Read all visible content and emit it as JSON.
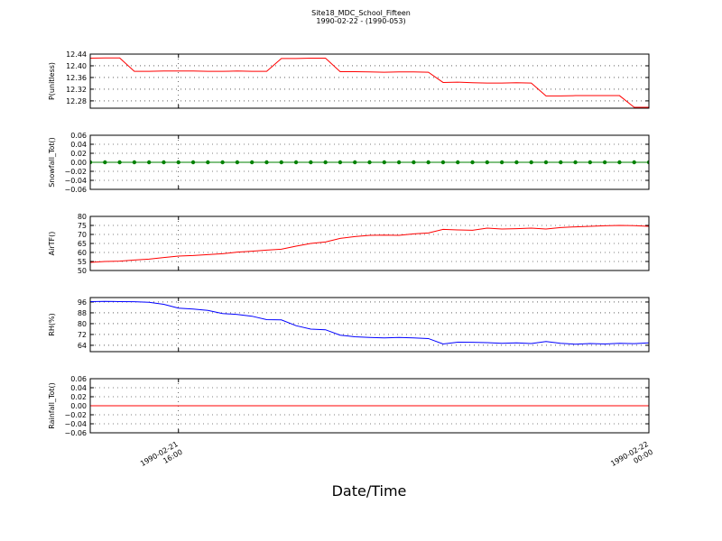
{
  "title": "Site18_MDC_School_Fifteen",
  "subtitle": "1990-02-22 - (1990-053)",
  "xlabel": "Date/Time",
  "x": [
    "1990-02-21 14:30",
    "1990-02-21 14:45",
    "1990-02-21 15:00",
    "1990-02-21 15:15",
    "1990-02-21 15:30",
    "1990-02-21 15:45",
    "1990-02-21 16:00",
    "1990-02-21 16:15",
    "1990-02-21 16:30",
    "1990-02-21 16:45",
    "1990-02-21 17:00",
    "1990-02-21 17:15",
    "1990-02-21 17:30",
    "1990-02-21 17:45",
    "1990-02-21 18:00",
    "1990-02-21 18:15",
    "1990-02-21 18:30",
    "1990-02-21 18:45",
    "1990-02-21 19:00",
    "1990-02-21 19:15",
    "1990-02-21 19:30",
    "1990-02-21 19:45",
    "1990-02-21 20:00",
    "1990-02-21 20:15",
    "1990-02-21 20:30",
    "1990-02-21 20:45",
    "1990-02-21 21:00",
    "1990-02-21 21:15",
    "1990-02-21 21:30",
    "1990-02-21 21:45",
    "1990-02-21 22:00",
    "1990-02-21 22:15",
    "1990-02-21 22:30",
    "1990-02-21 22:45",
    "1990-02-21 23:00",
    "1990-02-21 23:15",
    "1990-02-21 23:30",
    "1990-02-21 23:45",
    "1990-02-22 00:00"
  ],
  "xlim": [
    "1990-02-21 14:30",
    "1990-02-22 00:00"
  ],
  "xticks": [
    {
      "value": "1990-02-21 16:00",
      "label": "1990-02-21\n16:00"
    },
    {
      "value": "1990-02-22 00:00",
      "label": "1990-02-22\n00:00"
    }
  ],
  "chart_data": [
    {
      "type": "line",
      "ylabel": "P(unitless)",
      "ylim": [
        12.255,
        12.44
      ],
      "grid": true,
      "yticks": [
        12.28,
        12.32,
        12.36,
        {
          "value": 12.4,
          "label": "12.40"
        },
        12.44
      ],
      "series": [
        {
          "name": "P",
          "color": "#ff0000",
          "marker": false,
          "values": [
            12.426,
            12.427,
            12.427,
            12.381,
            12.381,
            12.382,
            12.382,
            12.382,
            12.381,
            12.381,
            12.382,
            12.381,
            12.381,
            12.425,
            12.425,
            12.426,
            12.426,
            12.38,
            12.38,
            12.379,
            12.378,
            12.379,
            12.379,
            12.378,
            12.343,
            12.344,
            12.342,
            12.341,
            12.341,
            12.342,
            12.341,
            12.297,
            12.297,
            12.298,
            12.298,
            12.298,
            12.298,
            12.258,
            12.258
          ]
        }
      ]
    },
    {
      "type": "line",
      "ylabel": "Snowfall_Tot()",
      "ylim": [
        -0.06,
        0.06
      ],
      "grid": true,
      "yticks": [
        {
          "value": -0.06,
          "label": "−0.06"
        },
        {
          "value": -0.04,
          "label": "−0.04"
        },
        {
          "value": -0.02,
          "label": "−0.02"
        },
        {
          "value": 0,
          "label": "0.00"
        },
        0.02,
        0.04,
        0.06
      ],
      "series": [
        {
          "name": "Snowfall_Tot",
          "color": "#008000",
          "marker": true,
          "values": [
            0,
            0,
            0,
            0,
            0,
            0,
            0,
            0,
            0,
            0,
            0,
            0,
            0,
            0,
            0,
            0,
            0,
            0,
            0,
            0,
            0,
            0,
            0,
            0,
            0,
            0,
            0,
            0,
            0,
            0,
            0,
            0,
            0,
            0,
            0,
            0,
            0,
            0,
            0
          ]
        }
      ]
    },
    {
      "type": "line",
      "ylabel": "AirTF()",
      "ylim": [
        50,
        80
      ],
      "grid": true,
      "yticks": [
        50,
        55,
        60,
        65,
        70,
        75,
        80
      ],
      "series": [
        {
          "name": "AirTF",
          "color": "#ff0000",
          "marker": false,
          "values": [
            54.5,
            55,
            55.2,
            55.8,
            56.3,
            57.2,
            58,
            58.3,
            58.8,
            59.3,
            60.2,
            60.7,
            61.3,
            61.8,
            63.5,
            65,
            65.8,
            67.8,
            68.8,
            69.5,
            69.6,
            69.5,
            70.3,
            70.8,
            72.8,
            72.5,
            72.3,
            73.5,
            73,
            73.2,
            73.5,
            73,
            73.8,
            74.2,
            74.5,
            74.8,
            75,
            74.9,
            74.5
          ]
        }
      ]
    },
    {
      "type": "line",
      "ylabel": "RH(%)",
      "ylim": [
        59.3,
        99.3
      ],
      "grid": true,
      "yticks": [
        64,
        72,
        80,
        88,
        96
      ],
      "series": [
        {
          "name": "RH",
          "color": "#0000ff",
          "marker": false,
          "values": [
            96.3,
            96.5,
            96.3,
            96.2,
            95.8,
            94.3,
            91.5,
            90.8,
            89.8,
            87.5,
            86.8,
            85.5,
            83,
            82.8,
            78.5,
            76,
            75.5,
            71.5,
            70.3,
            69.8,
            69.5,
            69.8,
            69.5,
            69,
            65,
            66.3,
            66.2,
            66,
            65.5,
            65.8,
            65.3,
            66.8,
            65.5,
            64.8,
            65.3,
            65,
            65.5,
            65.2,
            65.8
          ]
        }
      ]
    },
    {
      "type": "line",
      "ylabel": "Rainfall_Tot()",
      "ylim": [
        -0.06,
        0.06
      ],
      "grid": true,
      "yticks": [
        {
          "value": -0.06,
          "label": "−0.06"
        },
        {
          "value": -0.04,
          "label": "−0.04"
        },
        {
          "value": -0.02,
          "label": "−0.02"
        },
        {
          "value": 0,
          "label": "0.00"
        },
        0.02,
        0.04,
        0.06
      ],
      "series": [
        {
          "name": "Rainfall_Tot",
          "color": "#ff0000",
          "marker": false,
          "values": [
            0,
            0,
            0,
            0,
            0,
            0,
            0,
            0,
            0,
            0,
            0,
            0,
            0,
            0,
            0,
            0,
            0,
            0,
            0,
            0,
            0,
            0,
            0,
            0,
            0,
            0,
            0,
            0,
            0,
            0,
            0,
            0,
            0,
            0,
            0,
            0,
            0,
            0,
            0
          ]
        }
      ]
    }
  ]
}
